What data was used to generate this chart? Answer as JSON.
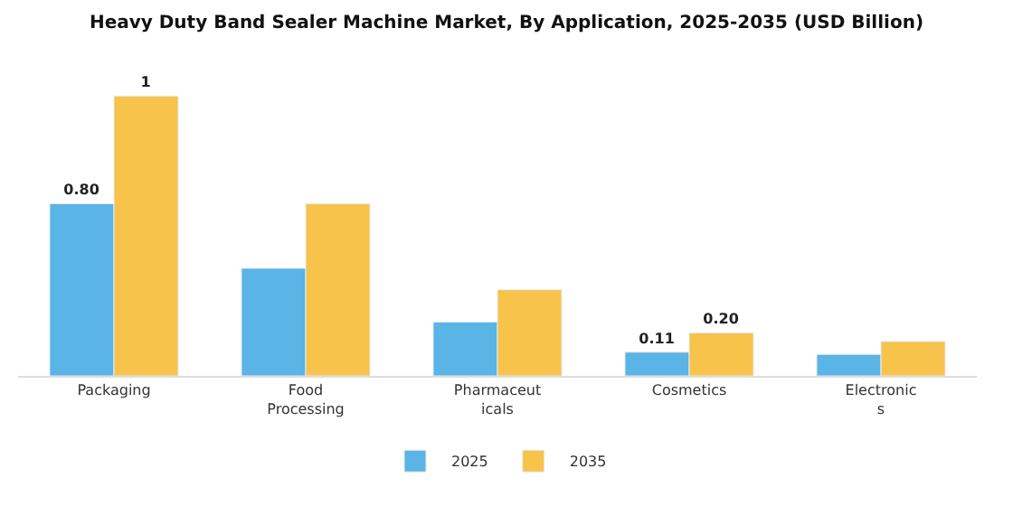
{
  "chart_data": {
    "type": "bar",
    "title": "Heavy Duty Band Sealer Machine Market, By Application, 2025-2035 (USD Billion)",
    "categories": [
      "Packaging",
      "Food\nProcessing",
      "Pharmaceut\nicals",
      "Cosmetics",
      "Electronic\ns"
    ],
    "series": [
      {
        "name": "2025",
        "color": "#5ab4e5",
        "values": [
          0.8,
          0.5,
          0.25,
          0.11,
          0.1
        ],
        "value_labels": [
          "0.80",
          null,
          null,
          "0.11",
          null
        ]
      },
      {
        "name": "2035",
        "color": "#f7c34a",
        "values": [
          1.3,
          0.8,
          0.4,
          0.2,
          0.16
        ],
        "value_labels": [
          "1",
          null,
          null,
          "0.20",
          null
        ]
      }
    ],
    "legend": "bottom"
  }
}
